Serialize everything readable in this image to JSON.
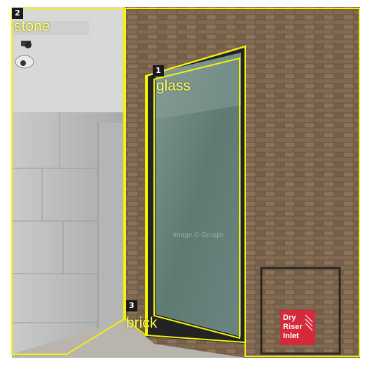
{
  "annotations": [
    {
      "id": "1",
      "label": "glass"
    },
    {
      "id": "2",
      "label": "stone"
    },
    {
      "id": "3",
      "label": "brick"
    }
  ],
  "scene_text": {
    "sign": [
      "Dry",
      "Riser",
      "Inlet"
    ],
    "watermark": "Image © Google"
  },
  "colors": {
    "annotation_outline": "#f2f20a",
    "label_background": "#1a1a1a",
    "label_text": "#ffff5a",
    "sign_background": "#d42a3a"
  }
}
